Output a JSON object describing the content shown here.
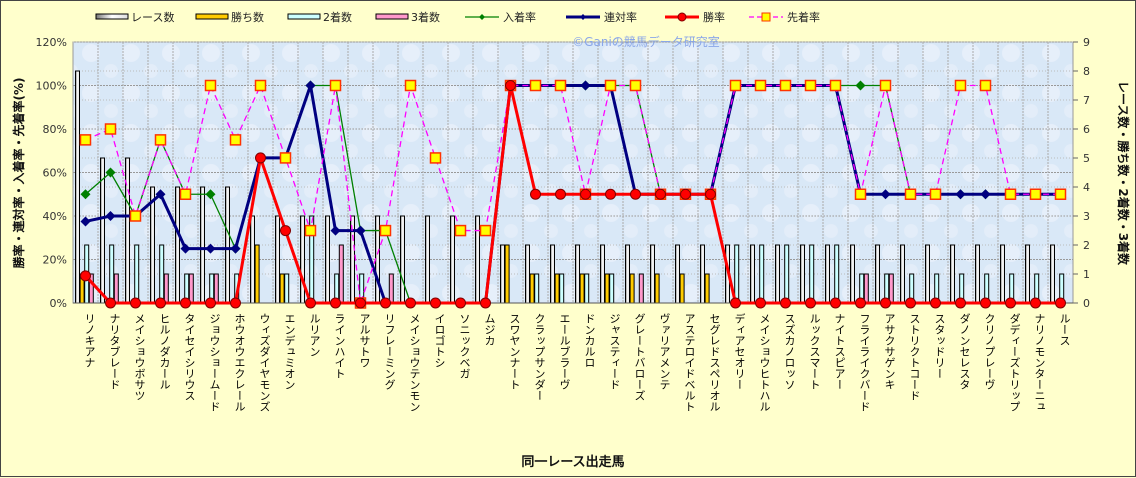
{
  "chart_data": {
    "type": "bar+line",
    "xlabel": "同一レース出走馬",
    "ylabel_left": "勝率・連対率・入着率・先着率(%)",
    "ylabel_right": "レース数・勝ち数・2着数・3着数",
    "watermark": "©Ganiの競馬データ研究室",
    "ylim_left": [
      0,
      120
    ],
    "yticks_left": [
      "0%",
      "20%",
      "40%",
      "60%",
      "80%",
      "100%",
      "120%"
    ],
    "ylim_right": [
      0,
      9
    ],
    "yticks_right": [
      "0",
      "1",
      "2",
      "3",
      "4",
      "5",
      "6",
      "7",
      "8",
      "9"
    ],
    "grid": true,
    "legend_position": "top",
    "categories": [
      "リノキアナ",
      "ナリタブレード",
      "メイショウボサツ",
      "ヒルノダカール",
      "タイセイシリウス",
      "ジョウショームード",
      "ホウオウエクレール",
      "ウィズダイヤモンズ",
      "エンデュミオン",
      "ルリアン",
      "ラインハイト",
      "アルサトワ",
      "リフレーミング",
      "メイショウテンモン",
      "イロゴトシ",
      "ソニックベガ",
      "ムジカ",
      "スワヤンナート",
      "クラップサンダー",
      "エールブラーヴ",
      "ドンカルロ",
      "ジャスティード",
      "グレートバローズ",
      "ヴァリアメンテ",
      "アステロイドベルト",
      "セグレドスペリオル",
      "ディアセオリー",
      "メイショウヒトハル",
      "スズカノロッソ",
      "ルックスマート",
      "ナイトスピアー",
      "フライライクバード",
      "アサクサゲンキ",
      "ストリクトコード",
      "スタッドリー",
      "ダノンセレスタ",
      "クリノプレーヴ",
      "ダディーズトリップ",
      "ナリノモンターニュ",
      "ルース"
    ],
    "bar_series": [
      {
        "name": "レース数",
        "color": "#e8e8e8",
        "values": [
          8,
          5,
          5,
          4,
          4,
          4,
          4,
          3,
          3,
          3,
          3,
          3,
          3,
          3,
          3,
          3,
          3,
          2,
          2,
          2,
          2,
          2,
          2,
          2,
          2,
          2,
          2,
          2,
          2,
          2,
          2,
          2,
          2,
          2,
          2,
          2,
          2,
          2,
          2,
          2
        ]
      },
      {
        "name": "勝ち数",
        "color": "#ffcc00",
        "values": [
          1,
          0,
          0,
          0,
          0,
          0,
          0,
          2,
          1,
          0,
          0,
          0,
          0,
          0,
          0,
          0,
          0,
          2,
          1,
          1,
          1,
          1,
          1,
          1,
          1,
          1,
          0,
          0,
          0,
          0,
          0,
          0,
          0,
          0,
          0,
          0,
          0,
          0,
          0,
          0
        ]
      },
      {
        "name": "2着数",
        "color": "#ccffff",
        "values": [
          2,
          2,
          2,
          2,
          1,
          1,
          1,
          0,
          1,
          3,
          1,
          1,
          0,
          0,
          0,
          0,
          0,
          0,
          1,
          1,
          1,
          1,
          0,
          0,
          0,
          0,
          2,
          2,
          2,
          2,
          2,
          1,
          1,
          1,
          1,
          1,
          1,
          1,
          1,
          1
        ]
      },
      {
        "name": "3着数",
        "color": "#ff99cc",
        "values": [
          1,
          1,
          0,
          1,
          1,
          1,
          0,
          0,
          0,
          0,
          2,
          0,
          1,
          0,
          0,
          0,
          0,
          0,
          0,
          0,
          0,
          0,
          1,
          0,
          0,
          0,
          0,
          0,
          0,
          0,
          0,
          1,
          1,
          0,
          0,
          0,
          0,
          0,
          0,
          0
        ]
      }
    ],
    "line_series": [
      {
        "name": "入着率",
        "color": "#008000",
        "marker": "diamond",
        "values": [
          50,
          60,
          40,
          75,
          50,
          50,
          25,
          66.7,
          66.7,
          100,
          100,
          33.3,
          33.3,
          0,
          0,
          0,
          0,
          100,
          100,
          100,
          100,
          100,
          100,
          50,
          50,
          50,
          100,
          100,
          100,
          100,
          100,
          100,
          100,
          50,
          50,
          50,
          50,
          50,
          50,
          50
        ]
      },
      {
        "name": "連対率",
        "color": "#000080",
        "marker": "diamond",
        "values": [
          37.5,
          40,
          40,
          50,
          25,
          25,
          25,
          66.7,
          66.7,
          100,
          33.3,
          33.3,
          0,
          0,
          0,
          0,
          0,
          100,
          100,
          100,
          100,
          100,
          50,
          50,
          50,
          50,
          100,
          100,
          100,
          100,
          100,
          50,
          50,
          50,
          50,
          50,
          50,
          50,
          50,
          50
        ]
      },
      {
        "name": "勝率",
        "color": "#ff0000",
        "marker": "circle",
        "values": [
          12.5,
          0,
          0,
          0,
          0,
          0,
          0,
          66.7,
          33.3,
          0,
          0,
          0,
          0,
          0,
          0,
          0,
          0,
          100,
          50,
          50,
          50,
          50,
          50,
          50,
          50,
          50,
          0,
          0,
          0,
          0,
          0,
          0,
          0,
          0,
          0,
          0,
          0,
          0,
          0,
          0
        ]
      },
      {
        "name": "先着率",
        "color": "#ff00ff",
        "marker": "square",
        "values": [
          75,
          80,
          40,
          75,
          50,
          100,
          75,
          100,
          66.7,
          33.3,
          100,
          0,
          33.3,
          100,
          66.7,
          33.3,
          33.3,
          100,
          100,
          100,
          50,
          100,
          100,
          50,
          50,
          50,
          100,
          100,
          100,
          100,
          100,
          50,
          100,
          50,
          50,
          100,
          100,
          50,
          50,
          50
        ]
      }
    ]
  }
}
